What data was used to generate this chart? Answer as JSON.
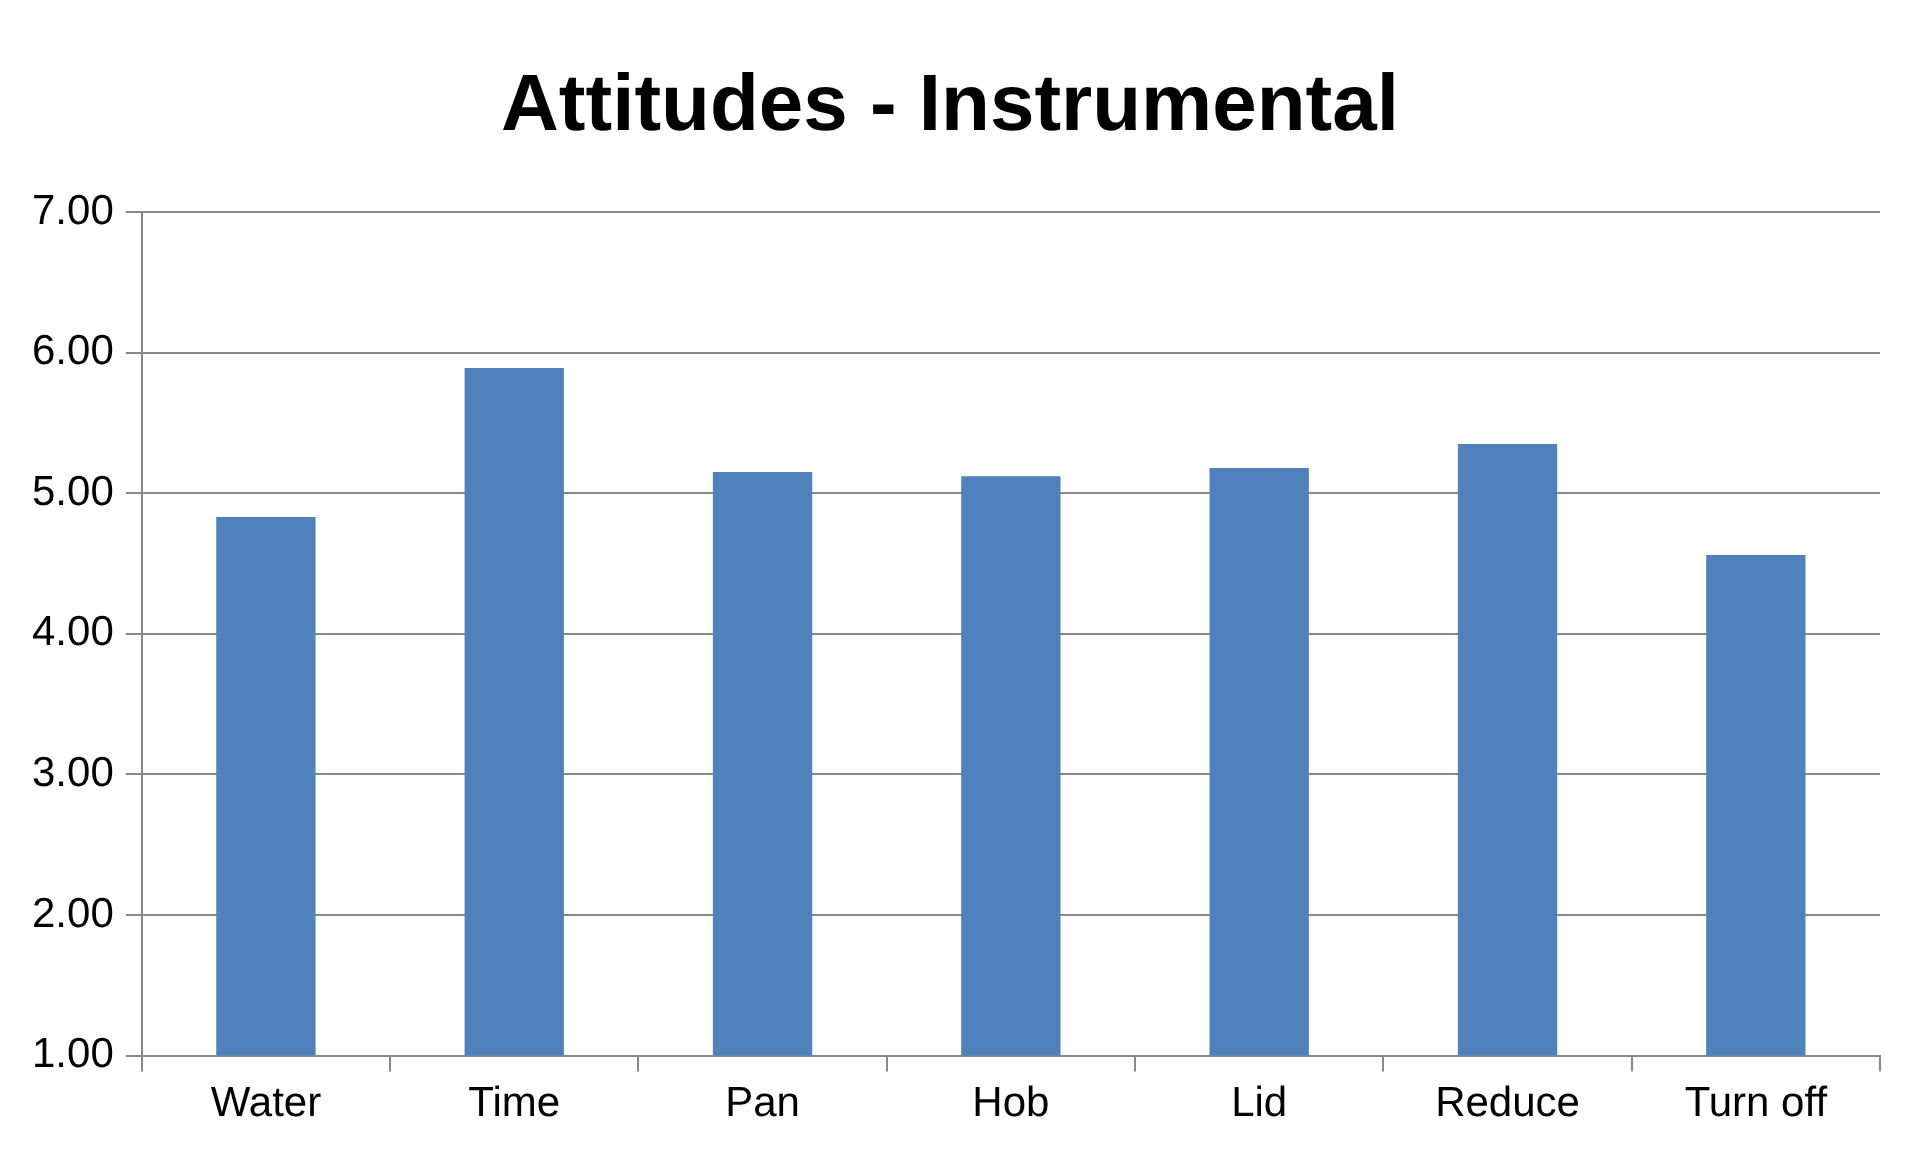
{
  "chart_data": {
    "type": "bar",
    "title": "Attitudes - Instrumental",
    "categories": [
      "Water",
      "Time",
      "Pan",
      "Hob",
      "Lid",
      "Reduce",
      "Turn off"
    ],
    "values": [
      4.83,
      5.89,
      5.15,
      5.12,
      5.18,
      5.35,
      4.56
    ],
    "color": "#4f81bd",
    "ylim": [
      1,
      7
    ],
    "yticks": [
      {
        "value": 1,
        "label": "1.00"
      },
      {
        "value": 2,
        "label": "2.00"
      },
      {
        "value": 3,
        "label": "3.00"
      },
      {
        "value": 4,
        "label": "4.00"
      },
      {
        "value": 5,
        "label": "5.00"
      },
      {
        "value": 6,
        "label": "6.00"
      },
      {
        "value": 7,
        "label": "7.00"
      }
    ],
    "grid": "y",
    "legend": false
  }
}
